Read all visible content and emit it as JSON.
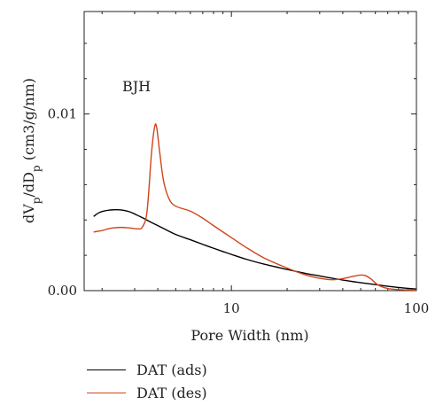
{
  "chart_data": {
    "type": "line",
    "annotation": "BJH",
    "xlabel": "Pore Width (nm)",
    "ylabel": "dV_p/dD_p (cm3/g/nm)",
    "xscale": "log",
    "xlim": [
      1.6,
      100
    ],
    "ylim": [
      0,
      0.0158
    ],
    "x_ticks": [
      10,
      100
    ],
    "y_ticks": [
      0.0,
      0.01
    ],
    "y_tick_labels": [
      "0.00",
      "0.01"
    ],
    "x_tick_labels": [
      "10",
      "100"
    ],
    "grid": false,
    "legend_position": "bottom-left, outside plot",
    "series": [
      {
        "name": "DAT (ads)",
        "color": "#000000",
        "points": [
          [
            1.8,
            0.0042
          ],
          [
            1.9,
            0.00438
          ],
          [
            2.0,
            0.00448
          ],
          [
            2.2,
            0.00456
          ],
          [
            2.4,
            0.00458
          ],
          [
            2.6,
            0.00455
          ],
          [
            2.8,
            0.00447
          ],
          [
            3.0,
            0.00434
          ],
          [
            3.3,
            0.00413
          ],
          [
            3.6,
            0.00392
          ],
          [
            4.0,
            0.00368
          ],
          [
            4.5,
            0.00341
          ],
          [
            5.0,
            0.00318
          ],
          [
            6.0,
            0.00288
          ],
          [
            7.0,
            0.00262
          ],
          [
            8.0,
            0.0024
          ],
          [
            10,
            0.00205
          ],
          [
            12,
            0.00178
          ],
          [
            15,
            0.0015
          ],
          [
            20,
            0.0012
          ],
          [
            25,
            0.00098
          ],
          [
            30,
            0.00083
          ],
          [
            40,
            0.0006
          ],
          [
            50,
            0.00045
          ],
          [
            60,
            0.00034
          ],
          [
            70,
            0.00025
          ],
          [
            80,
            0.00018
          ],
          [
            90,
            0.00013
          ],
          [
            100,
            9e-05
          ]
        ]
      },
      {
        "name": "DAT (des)",
        "color": "#d0451b",
        "points": [
          [
            1.8,
            0.00332
          ],
          [
            2.0,
            0.0034
          ],
          [
            2.2,
            0.00352
          ],
          [
            2.5,
            0.00358
          ],
          [
            2.8,
            0.00355
          ],
          [
            3.1,
            0.0035
          ],
          [
            3.3,
            0.0036
          ],
          [
            3.5,
            0.0045
          ],
          [
            3.7,
            0.0078
          ],
          [
            3.85,
            0.0093
          ],
          [
            3.95,
            0.0092
          ],
          [
            4.1,
            0.0078
          ],
          [
            4.3,
            0.0062
          ],
          [
            4.6,
            0.0052
          ],
          [
            5.0,
            0.00478
          ],
          [
            6.0,
            0.0045
          ],
          [
            7.0,
            0.0041
          ],
          [
            8.0,
            0.00368
          ],
          [
            10,
            0.003
          ],
          [
            12,
            0.00245
          ],
          [
            15,
            0.00185
          ],
          [
            20,
            0.00128
          ],
          [
            25,
            0.0009
          ],
          [
            30,
            0.0007
          ],
          [
            35,
            0.00062
          ],
          [
            40,
            0.00068
          ],
          [
            45,
            0.0008
          ],
          [
            50,
            0.00088
          ],
          [
            53,
            0.00085
          ],
          [
            57,
            0.00065
          ],
          [
            62,
            0.00032
          ],
          [
            70,
            0.00012
          ],
          [
            80,
            6e-05
          ],
          [
            100,
            3e-05
          ]
        ]
      }
    ]
  }
}
